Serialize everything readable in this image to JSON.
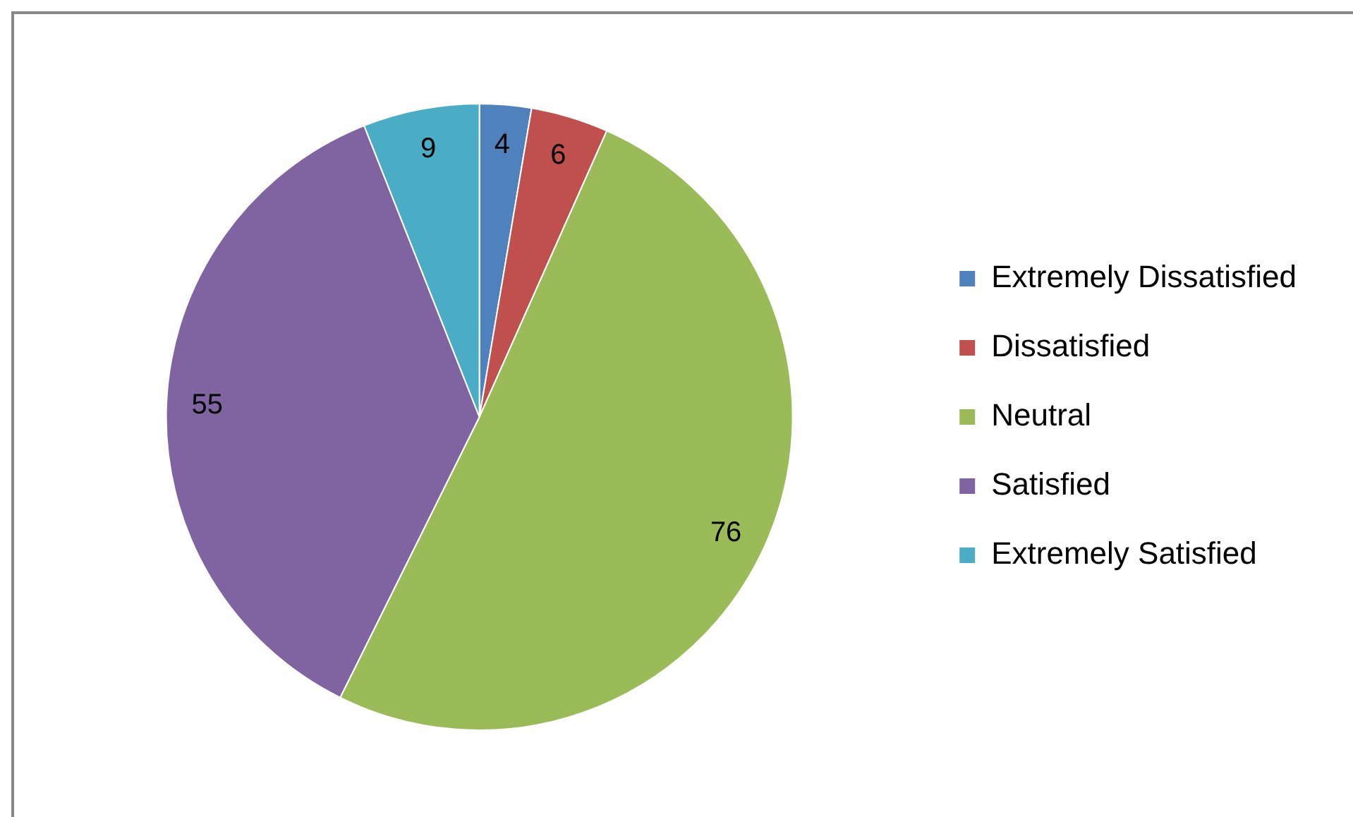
{
  "chart_data": {
    "type": "pie",
    "categories": [
      "Extremely Dissatisfied",
      "Dissatisfied",
      "Neutral",
      "Satisfied",
      "Extremely Satisfied"
    ],
    "values": [
      4,
      6,
      76,
      55,
      9
    ],
    "colors": [
      "#4f81bd",
      "#c0504d",
      "#9bbb59",
      "#8064a2",
      "#4bacc6"
    ],
    "legend": "right",
    "data_labels": true
  }
}
